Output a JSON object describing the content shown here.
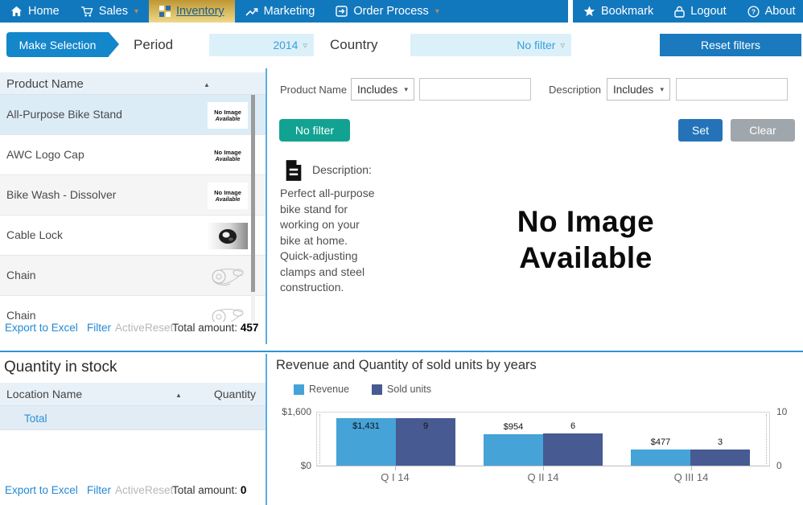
{
  "nav": {
    "left_items": [
      {
        "label": "Home",
        "icon": "home-icon"
      },
      {
        "label": "Sales",
        "icon": "cart-icon",
        "chevron": true
      },
      {
        "label": "Inventory",
        "icon": "grid-icon",
        "active": true
      },
      {
        "label": "Marketing",
        "icon": "trend-icon"
      },
      {
        "label": "Order Process",
        "icon": "box-arrow-icon",
        "chevron": true
      }
    ],
    "right_items": [
      {
        "label": "Bookmark",
        "icon": "star-icon"
      },
      {
        "label": "Logout",
        "icon": "lock-icon"
      },
      {
        "label": "About",
        "icon": "question-icon"
      }
    ]
  },
  "filter_bar": {
    "make_selection_label": "Make Selection",
    "period_label": "Period",
    "period_value": "2014",
    "country_label": "Country",
    "country_value": "No filter",
    "reset_label": "Reset filters"
  },
  "product_list": {
    "header": "Product Name",
    "no_image_thumb": {
      "line1": "No Image",
      "line2": "Available"
    },
    "rows": [
      {
        "name": "All-Purpose Bike Stand",
        "image": "no-image",
        "selected": true
      },
      {
        "name": "AWC Logo Cap",
        "image": "no-image",
        "selected": false
      },
      {
        "name": "Bike Wash - Dissolver",
        "image": "no-image",
        "selected": false
      },
      {
        "name": "Cable Lock",
        "image": "cable-lock",
        "selected": false
      },
      {
        "name": "Chain",
        "image": "chain",
        "selected": false
      },
      {
        "name": "Chain",
        "image": "chain",
        "selected": false
      }
    ],
    "footer": {
      "export_label": "Export to Excel",
      "filter_label": "Filter",
      "active_label": "Active",
      "reset_label": "Reset",
      "total_label": "Total amount:",
      "total_value": "457"
    }
  },
  "detail": {
    "name_filter": {
      "label": "Product Name",
      "operator": "Includes",
      "value": "",
      "placeholder": ""
    },
    "description_filter": {
      "label": "Description",
      "operator": "Includes",
      "value": "",
      "placeholder": ""
    },
    "no_filter_label": "No filter",
    "set_label": "Set",
    "clear_label": "Clear",
    "description_heading": "Description:",
    "description_text": "Perfect all-purpose bike stand for working on your bike at home. Quick-adjusting clamps and steel construction.",
    "no_image_text": "No Image\nAvailable"
  },
  "stock": {
    "title": "Quantity in stock",
    "columns": [
      "Location Name",
      "Quantity"
    ],
    "rows": [
      {
        "name": "Total",
        "quantity": ""
      }
    ],
    "footer": {
      "export_label": "Export to Excel",
      "filter_label": "Filter",
      "active_label": "Active",
      "reset_label": "Reset",
      "total_label": "Total amount:",
      "total_value": "0"
    }
  },
  "chart_data": {
    "type": "bar",
    "title": "Revenue and Quantity of sold units by years",
    "categories": [
      "Q I 14",
      "Q II 14",
      "Q III 14"
    ],
    "series": [
      {
        "name": "Revenue",
        "axis": "left",
        "color": "#45a3d8",
        "values": [
          1431,
          954,
          477
        ],
        "labels": [
          "$1,431",
          "$954",
          "$477"
        ]
      },
      {
        "name": "Sold units",
        "axis": "right",
        "color": "#475a92",
        "values": [
          9,
          6,
          3
        ],
        "labels": [
          "9",
          "6",
          "3"
        ]
      }
    ],
    "left_axis": {
      "max": 1600,
      "ticks": [
        "$0",
        "$1,600"
      ]
    },
    "right_axis": {
      "max": 10,
      "ticks": [
        "0",
        "10"
      ]
    },
    "legend_position": "top-left",
    "grid": false
  },
  "colors": {
    "nav_blue": "#1278be",
    "active_tab_gold": "#d9bc62",
    "button_blue": "#1b79bd",
    "teal_button": "#12a291",
    "link_blue": "#2288d5",
    "selected_row": "#dcecf7"
  }
}
